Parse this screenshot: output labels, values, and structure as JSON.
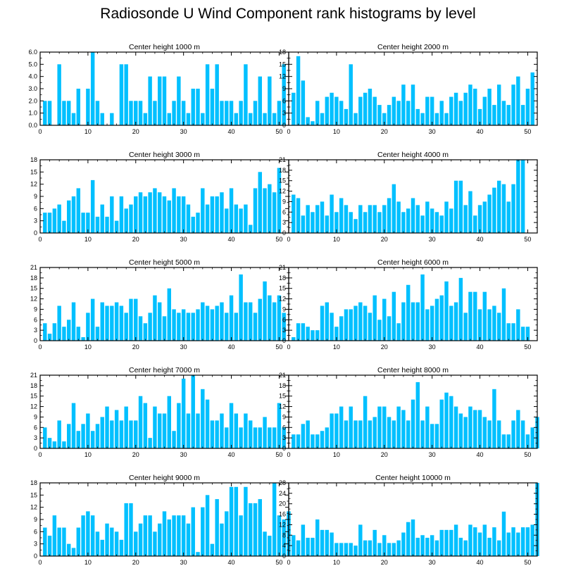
{
  "title": "Radiosonde U Wind Component rank histograms by level",
  "colors": {
    "bar": "#00c0ff",
    "axis": "#000000"
  },
  "chart_data": [
    {
      "type": "bar",
      "title": "Center height 1000 m",
      "xlim": [
        0,
        52
      ],
      "ylim": [
        0,
        6
      ],
      "x_ticks": [
        0,
        10,
        20,
        30,
        40,
        50
      ],
      "y_ticks": [
        0,
        1,
        2,
        3,
        4,
        5,
        6
      ],
      "y_tick_labels": [
        "0.0",
        "1.0",
        "2.0",
        "3.0",
        "4.0",
        "5.0",
        "6.0"
      ],
      "values": [
        2,
        2,
        0,
        5,
        2,
        2,
        1,
        3,
        0,
        3,
        6,
        2,
        1,
        0,
        1,
        0,
        5,
        5,
        2,
        2,
        2,
        1,
        4,
        2,
        4,
        4,
        1,
        2,
        4,
        2,
        1,
        3,
        3,
        1,
        5,
        3,
        5,
        2,
        2,
        2,
        1,
        2,
        5,
        1,
        2,
        4,
        1,
        4,
        1,
        2,
        5
      ]
    },
    {
      "type": "bar",
      "title": "Center height 2000 m",
      "xlim": [
        0,
        52
      ],
      "ylim": [
        0,
        18
      ],
      "x_ticks": [
        0,
        10,
        20,
        30,
        40,
        50
      ],
      "y_ticks": [
        0,
        3,
        6,
        9,
        12,
        15,
        18
      ],
      "y_tick_labels": [
        "0",
        "3",
        "6",
        "9",
        "12",
        "15",
        "18"
      ],
      "values": [
        8,
        17,
        11,
        2,
        1,
        6,
        3,
        7,
        8,
        7,
        6,
        4,
        15,
        3,
        7,
        8,
        9,
        7,
        5,
        3,
        5,
        7,
        6,
        10,
        6,
        10,
        4,
        3,
        7,
        7,
        3,
        6,
        3,
        7,
        8,
        6,
        8,
        10,
        9,
        4,
        7,
        9,
        5,
        10,
        6,
        5,
        10,
        12,
        5,
        9,
        13
      ]
    },
    {
      "type": "bar",
      "title": "Center height 3000 m",
      "xlim": [
        0,
        52
      ],
      "ylim": [
        0,
        18
      ],
      "x_ticks": [
        0,
        10,
        20,
        30,
        40,
        50
      ],
      "y_ticks": [
        0,
        3,
        6,
        9,
        12,
        15,
        18
      ],
      "y_tick_labels": [
        "0",
        "3",
        "6",
        "9",
        "12",
        "15",
        "18"
      ],
      "values": [
        5,
        5,
        6,
        7,
        3,
        8,
        9,
        11,
        5,
        5,
        13,
        4,
        7,
        4,
        9,
        3,
        9,
        6,
        7,
        9,
        10,
        9,
        10,
        11,
        10,
        9,
        8,
        11,
        9,
        9,
        7,
        4,
        5,
        11,
        7,
        9,
        9,
        10,
        6,
        11,
        7,
        6,
        7,
        2,
        11,
        15,
        11,
        12,
        10,
        16
      ]
    },
    {
      "type": "bar",
      "title": "Center height 4000 m",
      "xlim": [
        0,
        52
      ],
      "ylim": [
        0,
        21
      ],
      "x_ticks": [
        0,
        10,
        20,
        30,
        40,
        50
      ],
      "y_ticks": [
        0,
        3,
        6,
        9,
        12,
        15,
        18,
        21
      ],
      "y_tick_labels": [
        "0",
        "3",
        "6",
        "9",
        "12",
        "15",
        "18",
        "21"
      ],
      "values": [
        11,
        10,
        5,
        8,
        6,
        8,
        9,
        5,
        11,
        6,
        10,
        8,
        6,
        4,
        8,
        6,
        8,
        8,
        6,
        8,
        10,
        14,
        9,
        6,
        7,
        10,
        8,
        5,
        9,
        7,
        6,
        5,
        9,
        7,
        15,
        15,
        8,
        12,
        5,
        8,
        9,
        11,
        13,
        15,
        14,
        9,
        14,
        21,
        21
      ]
    },
    {
      "type": "bar",
      "title": "Center height 5000 m",
      "xlim": [
        0,
        52
      ],
      "ylim": [
        0,
        21
      ],
      "x_ticks": [
        0,
        10,
        20,
        30,
        40,
        50
      ],
      "y_ticks": [
        0,
        3,
        6,
        9,
        12,
        15,
        18,
        21
      ],
      "y_tick_labels": [
        "0",
        "3",
        "6",
        "9",
        "12",
        "15",
        "18",
        "21"
      ],
      "values": [
        5,
        2,
        5,
        10,
        4,
        6,
        11,
        4,
        1,
        8,
        12,
        4,
        11,
        10,
        10,
        11,
        10,
        8,
        12,
        12,
        7,
        5,
        8,
        13,
        11,
        7,
        15,
        9,
        8,
        9,
        8,
        8,
        9,
        11,
        10,
        9,
        10,
        11,
        8,
        13,
        8,
        19,
        11,
        11,
        8,
        12,
        17,
        13,
        11,
        13,
        8
      ]
    },
    {
      "type": "bar",
      "title": "Center height 6000 m",
      "xlim": [
        0,
        52
      ],
      "ylim": [
        0,
        21
      ],
      "x_ticks": [
        0,
        10,
        20,
        30,
        40,
        50
      ],
      "y_ticks": [
        0,
        3,
        6,
        9,
        12,
        15,
        18,
        21
      ],
      "y_tick_labels": [
        "0",
        "3",
        "6",
        "9",
        "12",
        "15",
        "18",
        "21"
      ],
      "values": [
        1,
        5,
        5,
        4,
        3,
        3,
        10,
        11,
        8,
        4,
        7,
        9,
        9,
        10,
        11,
        10,
        8,
        13,
        6,
        12,
        7,
        14,
        5,
        11,
        16,
        11,
        11,
        19,
        9,
        10,
        12,
        13,
        17,
        10,
        11,
        18,
        8,
        14,
        14,
        9,
        14,
        9,
        10,
        8,
        15,
        5,
        5,
        9,
        4,
        4
      ]
    },
    {
      "type": "bar",
      "title": "Center height 7000 m",
      "xlim": [
        0,
        52
      ],
      "ylim": [
        0,
        21
      ],
      "x_ticks": [
        0,
        10,
        20,
        30,
        40,
        50
      ],
      "y_ticks": [
        0,
        3,
        6,
        9,
        12,
        15,
        18,
        21
      ],
      "y_tick_labels": [
        "0",
        "3",
        "6",
        "9",
        "12",
        "15",
        "18",
        "21"
      ],
      "values": [
        6,
        3,
        2,
        8,
        2,
        7,
        13,
        5,
        7,
        10,
        5,
        7,
        9,
        12,
        8,
        11,
        8,
        12,
        8,
        8,
        15,
        13,
        3,
        12,
        10,
        10,
        15,
        5,
        13,
        20,
        10,
        21,
        10,
        17,
        14,
        8,
        8,
        10,
        6,
        13,
        10,
        6,
        10,
        8,
        6,
        6,
        9,
        6,
        6,
        13,
        6
      ]
    },
    {
      "type": "bar",
      "title": "Center height 8000 m",
      "xlim": [
        0,
        52
      ],
      "ylim": [
        0,
        21
      ],
      "x_ticks": [
        0,
        10,
        20,
        30,
        40,
        50
      ],
      "y_ticks": [
        0,
        3,
        6,
        9,
        12,
        15,
        18,
        21
      ],
      "y_tick_labels": [
        "0",
        "3",
        "6",
        "9",
        "12",
        "15",
        "18",
        "21"
      ],
      "values": [
        4,
        4,
        7,
        8,
        4,
        4,
        5,
        6,
        10,
        10,
        12,
        8,
        12,
        8,
        8,
        15,
        8,
        9,
        12,
        12,
        9,
        8,
        12,
        11,
        8,
        14,
        19,
        8,
        12,
        7,
        7,
        14,
        16,
        15,
        12,
        10,
        9,
        12,
        11,
        11,
        9,
        8,
        17,
        8,
        4,
        4,
        8,
        11,
        8,
        4,
        6,
        9
      ]
    },
    {
      "type": "bar",
      "title": "Center height 9000 m",
      "xlim": [
        0,
        52
      ],
      "ylim": [
        0,
        18
      ],
      "x_ticks": [
        0,
        10,
        20,
        30,
        40,
        50
      ],
      "y_ticks": [
        0,
        3,
        6,
        9,
        12,
        15,
        18
      ],
      "y_tick_labels": [
        "0",
        "3",
        "6",
        "9",
        "12",
        "15",
        "18"
      ],
      "values": [
        7,
        5,
        10,
        7,
        7,
        3,
        2,
        7,
        10,
        11,
        10,
        6,
        4,
        8,
        7,
        6,
        4,
        13,
        13,
        6,
        8,
        10,
        10,
        6,
        8,
        11,
        9,
        10,
        10,
        10,
        8,
        12,
        1,
        12,
        15,
        3,
        14,
        8,
        11,
        17,
        17,
        10,
        17,
        13,
        13,
        14,
        6,
        5,
        18,
        10,
        9,
        11
      ]
    },
    {
      "type": "bar",
      "title": "Center height 10000 m",
      "xlim": [
        0,
        52
      ],
      "ylim": [
        0,
        28
      ],
      "x_ticks": [
        0,
        10,
        20,
        30,
        40,
        50
      ],
      "y_ticks": [
        0,
        4,
        8,
        12,
        16,
        20,
        24,
        28
      ],
      "y_tick_labels": [
        "0",
        "4",
        "8",
        "12",
        "16",
        "20",
        "24",
        "28"
      ],
      "values": [
        8,
        6,
        12,
        7,
        7,
        14,
        10,
        10,
        9,
        5,
        5,
        5,
        5,
        4,
        12,
        6,
        6,
        10,
        5,
        8,
        5,
        5,
        6,
        9,
        13,
        14,
        7,
        8,
        7,
        8,
        6,
        10,
        10,
        10,
        12,
        7,
        6,
        12,
        11,
        9,
        12,
        7,
        11,
        6,
        17,
        9,
        11,
        9,
        11,
        11,
        12,
        28
      ]
    }
  ]
}
